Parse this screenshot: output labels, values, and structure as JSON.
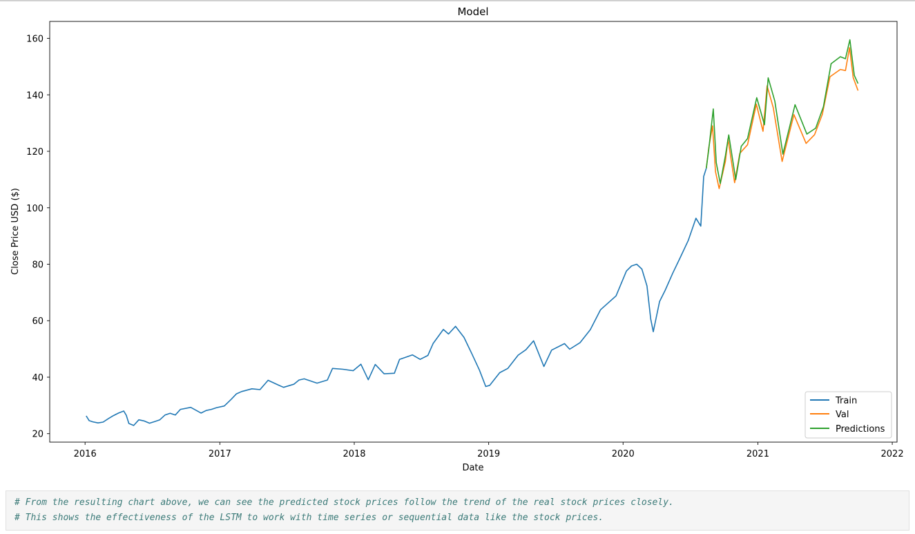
{
  "chart_data": {
    "type": "line",
    "title": "Model",
    "xlabel": "Date",
    "ylabel": "Close Price USD ($)",
    "xlim": [
      "2015-09-27",
      "2022-01-14"
    ],
    "ylim": [
      17,
      166
    ],
    "x_ticks": [
      "2016",
      "2017",
      "2018",
      "2019",
      "2020",
      "2021",
      "2022"
    ],
    "y_ticks": [
      20,
      40,
      60,
      80,
      100,
      120,
      140,
      160
    ],
    "grid": false,
    "legend_position": "lower-right",
    "series": [
      {
        "name": "Train",
        "color": "#1f77b4",
        "points": [
          [
            "2016-01-04",
            26.3
          ],
          [
            "2016-01-12",
            24.6
          ],
          [
            "2016-01-22",
            24.2
          ],
          [
            "2016-02-05",
            23.8
          ],
          [
            "2016-02-19",
            24.1
          ],
          [
            "2016-03-04",
            25.3
          ],
          [
            "2016-03-18",
            26.4
          ],
          [
            "2016-04-01",
            27.3
          ],
          [
            "2016-04-15",
            28.0
          ],
          [
            "2016-04-22",
            26.5
          ],
          [
            "2016-04-29",
            23.6
          ],
          [
            "2016-05-12",
            22.9
          ],
          [
            "2016-05-26",
            24.9
          ],
          [
            "2016-06-09",
            24.5
          ],
          [
            "2016-06-24",
            23.7
          ],
          [
            "2016-07-08",
            24.3
          ],
          [
            "2016-07-22",
            24.9
          ],
          [
            "2016-08-05",
            26.6
          ],
          [
            "2016-08-19",
            27.2
          ],
          [
            "2016-09-02",
            26.6
          ],
          [
            "2016-09-16",
            28.6
          ],
          [
            "2016-10-14",
            29.3
          ],
          [
            "2016-10-28",
            28.3
          ],
          [
            "2016-11-11",
            27.3
          ],
          [
            "2016-11-25",
            28.2
          ],
          [
            "2016-12-09",
            28.6
          ],
          [
            "2016-12-23",
            29.2
          ],
          [
            "2017-01-13",
            29.8
          ],
          [
            "2017-02-01",
            32.2
          ],
          [
            "2017-02-15",
            34.1
          ],
          [
            "2017-03-01",
            34.9
          ],
          [
            "2017-03-29",
            35.9
          ],
          [
            "2017-04-20",
            35.6
          ],
          [
            "2017-05-12",
            38.9
          ],
          [
            "2017-06-09",
            37.2
          ],
          [
            "2017-06-23",
            36.4
          ],
          [
            "2017-07-21",
            37.5
          ],
          [
            "2017-08-04",
            39.0
          ],
          [
            "2017-08-18",
            39.4
          ],
          [
            "2017-09-22",
            37.9
          ],
          [
            "2017-10-20",
            39.0
          ],
          [
            "2017-11-03",
            43.1
          ],
          [
            "2017-12-01",
            42.8
          ],
          [
            "2017-12-29",
            42.3
          ],
          [
            "2018-01-19",
            44.6
          ],
          [
            "2018-02-08",
            39.1
          ],
          [
            "2018-02-27",
            44.5
          ],
          [
            "2018-03-23",
            41.2
          ],
          [
            "2018-04-20",
            41.4
          ],
          [
            "2018-05-04",
            46.3
          ],
          [
            "2018-06-08",
            47.9
          ],
          [
            "2018-06-29",
            46.3
          ],
          [
            "2018-07-20",
            47.7
          ],
          [
            "2018-08-03",
            51.9
          ],
          [
            "2018-08-31",
            56.9
          ],
          [
            "2018-09-14",
            55.3
          ],
          [
            "2018-10-03",
            58.0
          ],
          [
            "2018-10-26",
            54.1
          ],
          [
            "2018-11-16",
            48.4
          ],
          [
            "2018-12-07",
            42.5
          ],
          [
            "2018-12-24",
            36.7
          ],
          [
            "2019-01-04",
            37.1
          ],
          [
            "2019-01-31",
            41.6
          ],
          [
            "2019-02-22",
            43.1
          ],
          [
            "2019-03-22",
            47.8
          ],
          [
            "2019-04-12",
            49.7
          ],
          [
            "2019-05-03",
            52.9
          ],
          [
            "2019-05-31",
            43.8
          ],
          [
            "2019-06-21",
            49.6
          ],
          [
            "2019-07-26",
            51.9
          ],
          [
            "2019-08-09",
            49.9
          ],
          [
            "2019-09-06",
            52.2
          ],
          [
            "2019-10-04",
            56.8
          ],
          [
            "2019-11-01",
            63.9
          ],
          [
            "2019-12-13",
            68.8
          ],
          [
            "2020-01-10",
            77.6
          ],
          [
            "2020-01-24",
            79.4
          ],
          [
            "2020-02-07",
            80.0
          ],
          [
            "2020-02-21",
            78.3
          ],
          [
            "2020-03-06",
            72.3
          ],
          [
            "2020-03-16",
            60.6
          ],
          [
            "2020-03-23",
            56.1
          ],
          [
            "2020-04-09",
            66.8
          ],
          [
            "2020-04-24",
            70.7
          ],
          [
            "2020-05-15",
            76.9
          ],
          [
            "2020-06-05",
            82.6
          ],
          [
            "2020-06-26",
            88.4
          ],
          [
            "2020-07-17",
            96.3
          ],
          [
            "2020-07-30",
            93.5
          ],
          [
            "2020-08-07",
            111.1
          ],
          [
            "2020-08-14",
            114.0
          ]
        ]
      },
      {
        "name": "Val",
        "color": "#ff7f0e",
        "points": [
          [
            "2020-08-14",
            114.0
          ],
          [
            "2020-08-21",
            121.5
          ],
          [
            "2020-08-31",
            129.0
          ],
          [
            "2020-09-08",
            112.8
          ],
          [
            "2020-09-18",
            106.8
          ],
          [
            "2020-10-05",
            116.5
          ],
          [
            "2020-10-12",
            124.4
          ],
          [
            "2020-10-30",
            108.9
          ],
          [
            "2020-11-13",
            119.3
          ],
          [
            "2020-12-04",
            122.3
          ],
          [
            "2020-12-28",
            136.7
          ],
          [
            "2021-01-15",
            127.1
          ],
          [
            "2021-01-26",
            143.2
          ],
          [
            "2021-02-12",
            135.4
          ],
          [
            "2021-03-08",
            116.4
          ],
          [
            "2021-04-09",
            133.0
          ],
          [
            "2021-05-12",
            122.8
          ],
          [
            "2021-06-04",
            125.9
          ],
          [
            "2021-06-25",
            133.1
          ],
          [
            "2021-07-16",
            146.4
          ],
          [
            "2021-08-13",
            149.0
          ],
          [
            "2021-08-27",
            148.6
          ],
          [
            "2021-09-07",
            156.7
          ],
          [
            "2021-09-17",
            146.1
          ],
          [
            "2021-09-30",
            141.5
          ]
        ]
      },
      {
        "name": "Predictions",
        "color": "#2ca02c",
        "points": [
          [
            "2020-08-14",
            114.0
          ],
          [
            "2020-08-21",
            121.0
          ],
          [
            "2020-09-02",
            135.0
          ],
          [
            "2020-09-10",
            116.0
          ],
          [
            "2020-09-21",
            108.6
          ],
          [
            "2020-10-05",
            118.5
          ],
          [
            "2020-10-14",
            125.8
          ],
          [
            "2020-11-02",
            110.0
          ],
          [
            "2020-11-17",
            121.8
          ],
          [
            "2020-12-04",
            124.5
          ],
          [
            "2020-12-29",
            139.0
          ],
          [
            "2021-01-19",
            129.4
          ],
          [
            "2021-01-29",
            146.0
          ],
          [
            "2021-02-16",
            137.8
          ],
          [
            "2021-03-10",
            119.0
          ],
          [
            "2021-04-12",
            136.5
          ],
          [
            "2021-05-14",
            126.1
          ],
          [
            "2021-06-07",
            128.2
          ],
          [
            "2021-06-28",
            135.8
          ],
          [
            "2021-07-19",
            151.0
          ],
          [
            "2021-08-13",
            153.5
          ],
          [
            "2021-08-27",
            152.8
          ],
          [
            "2021-09-08",
            159.5
          ],
          [
            "2021-09-20",
            146.9
          ],
          [
            "2021-09-30",
            144.0
          ]
        ]
      }
    ]
  },
  "notebook": {
    "comment_line_1": "# From the resulting chart above, we can see the predicted stock prices follow the trend of the real stock prices closely.",
    "comment_line_2": "# This shows the effectiveness of the LSTM to work with time series or sequential data like the stock prices."
  }
}
